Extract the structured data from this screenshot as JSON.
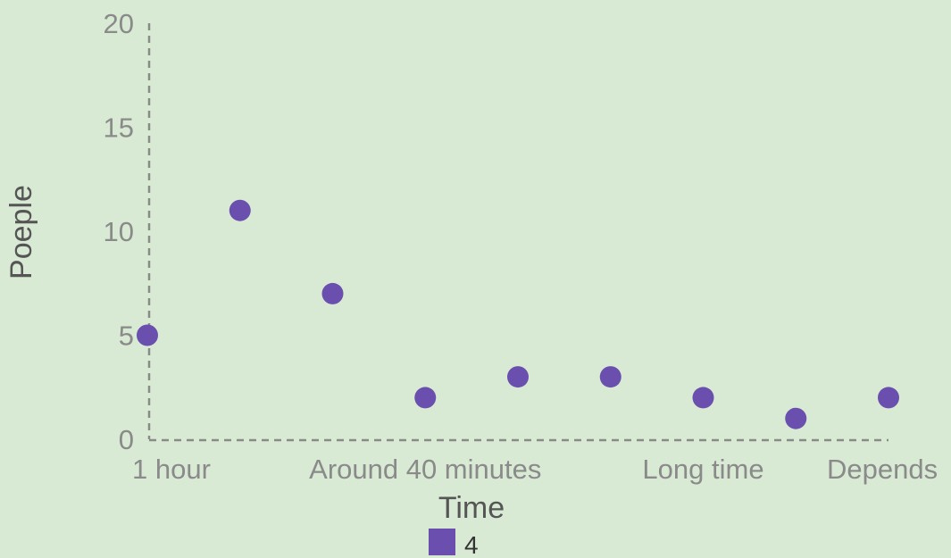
{
  "chart_data": {
    "type": "scatter",
    "xlabel": "Time",
    "ylabel": "Poeple",
    "ylim": [
      0,
      20
    ],
    "y_ticks": [
      0,
      5,
      10,
      15,
      20
    ],
    "categories": [
      "1 hour",
      "",
      "",
      "Around 40 minutes",
      "",
      "",
      "Long time",
      "",
      "Depends"
    ],
    "series": [
      {
        "name": "4",
        "values": [
          5,
          11,
          7,
          2,
          3,
          3,
          2,
          1,
          2
        ]
      }
    ],
    "grid": false,
    "legend_position": "bottom",
    "colors": {
      "series": "#6a4fae",
      "background": "#d8ead3",
      "axis": "#8a8a8a"
    }
  }
}
